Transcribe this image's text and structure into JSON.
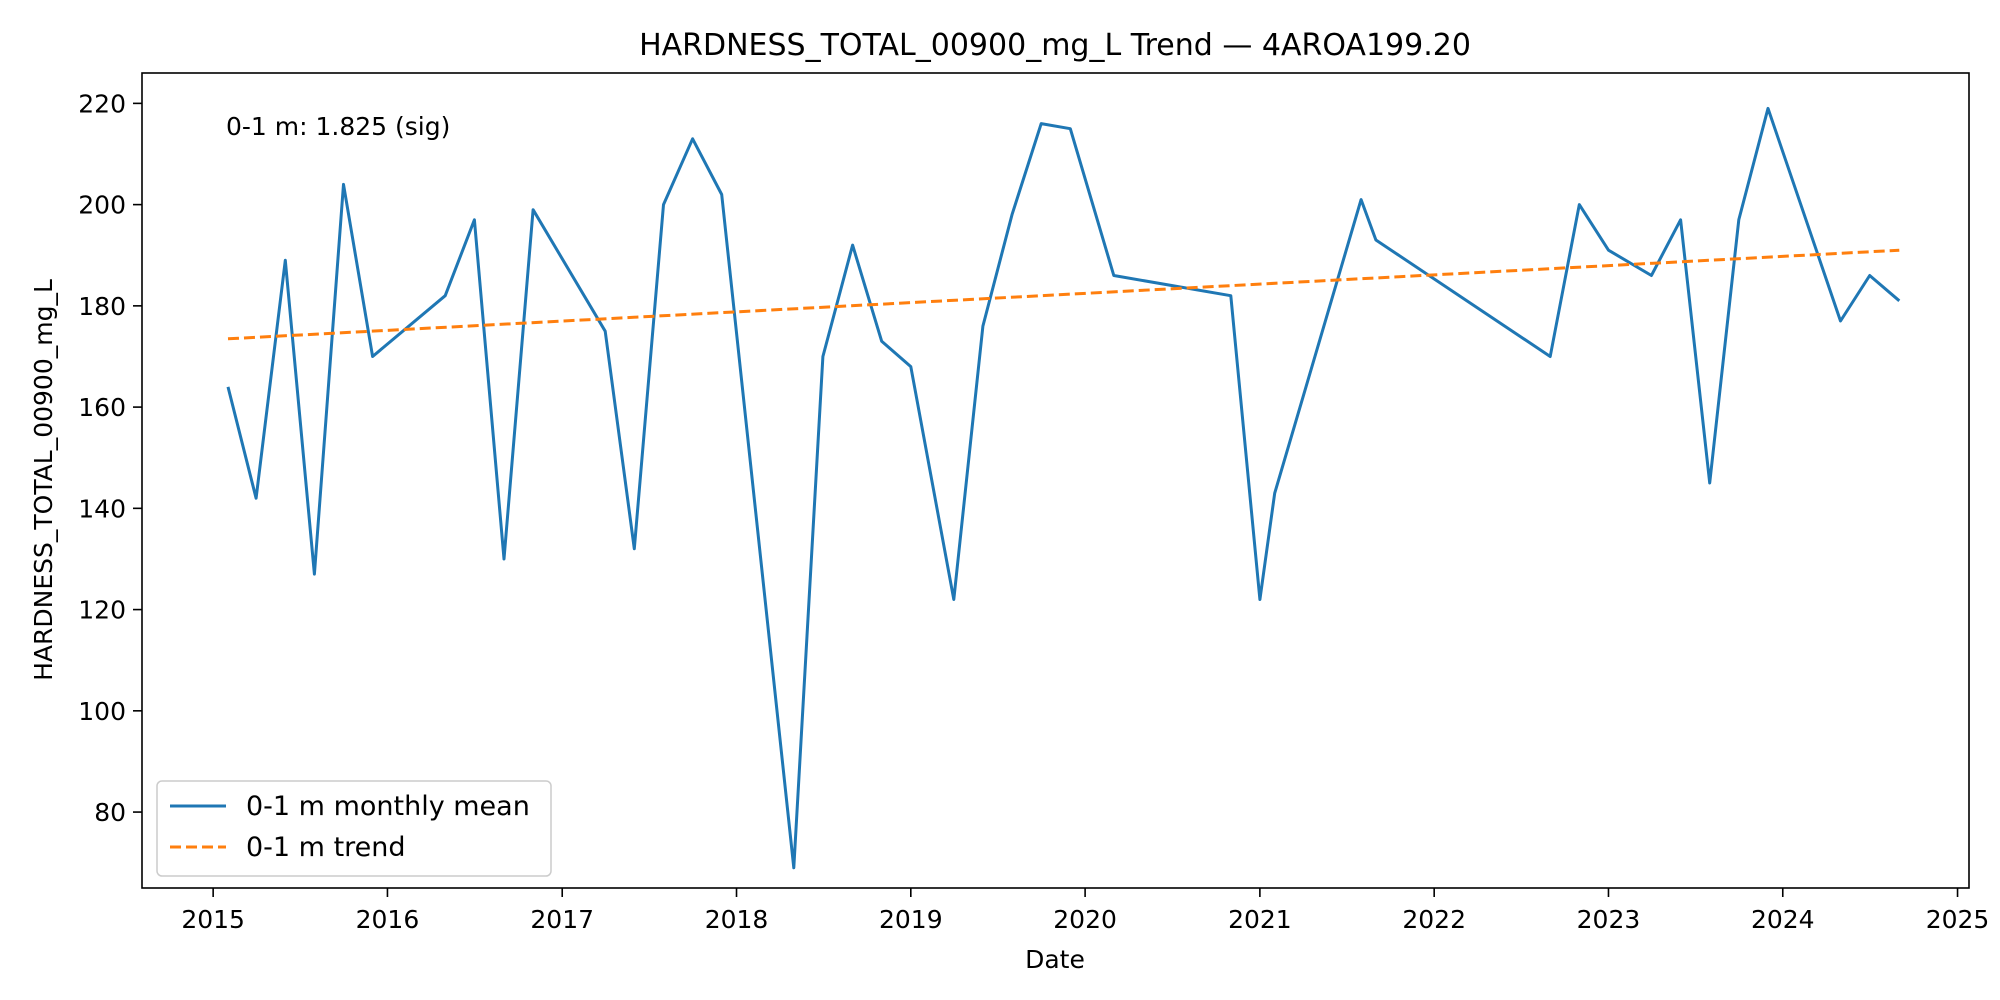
{
  "chart_data": {
    "type": "line",
    "title": "HARDNESS_TOTAL_00900_mg_L Trend — 4AROA199.20",
    "xlabel": "Date",
    "ylabel": "HARDNESS_TOTAL_00900_mg_L",
    "xlim": [
      "2014-08-05",
      "2025-01-25"
    ],
    "ylim": [
      65,
      226
    ],
    "x_ticks": [
      "2015",
      "2016",
      "2017",
      "2018",
      "2019",
      "2020",
      "2021",
      "2022",
      "2023",
      "2024",
      "2025"
    ],
    "y_ticks": [
      80,
      100,
      120,
      140,
      160,
      180,
      200,
      220
    ],
    "grid": false,
    "legend_position": "lower-left",
    "annotation": "0-1 m: 1.825 (sig)",
    "series": [
      {
        "name": "0-1 m monthly mean",
        "color": "#1f77b4",
        "style": "solid",
        "points": [
          [
            "2015-02-01",
            164
          ],
          [
            "2015-04-01",
            142
          ],
          [
            "2015-06-01",
            189
          ],
          [
            "2015-08-01",
            127
          ],
          [
            "2015-10-01",
            204
          ],
          [
            "2015-12-01",
            170
          ],
          [
            "2016-05-01",
            182
          ],
          [
            "2016-07-01",
            197
          ],
          [
            "2016-09-01",
            130
          ],
          [
            "2016-11-01",
            199
          ],
          [
            "2017-04-01",
            175
          ],
          [
            "2017-06-01",
            132
          ],
          [
            "2017-08-01",
            200
          ],
          [
            "2017-10-01",
            213
          ],
          [
            "2017-12-01",
            202
          ],
          [
            "2018-05-01",
            69
          ],
          [
            "2018-07-01",
            170
          ],
          [
            "2018-09-01",
            192
          ],
          [
            "2018-11-01",
            173
          ],
          [
            "2019-01-01",
            168
          ],
          [
            "2019-04-01",
            122
          ],
          [
            "2019-06-01",
            176
          ],
          [
            "2019-08-01",
            198
          ],
          [
            "2019-10-01",
            216
          ],
          [
            "2019-12-01",
            215
          ],
          [
            "2020-03-01",
            186
          ],
          [
            "2020-11-01",
            182
          ],
          [
            "2021-01-01",
            122
          ],
          [
            "2021-02-01",
            143
          ],
          [
            "2021-08-01",
            201
          ],
          [
            "2021-09-01",
            193
          ],
          [
            "2022-09-01",
            170
          ],
          [
            "2022-11-01",
            200
          ],
          [
            "2023-01-01",
            191
          ],
          [
            "2023-04-01",
            186
          ],
          [
            "2023-06-01",
            197
          ],
          [
            "2023-08-01",
            145
          ],
          [
            "2023-10-01",
            197
          ],
          [
            "2023-12-01",
            219
          ],
          [
            "2024-05-01",
            177
          ],
          [
            "2024-07-01",
            186
          ],
          [
            "2024-09-01",
            181
          ]
        ]
      },
      {
        "name": "0-1 m trend",
        "color": "#ff7f0e",
        "style": "dashed",
        "points": [
          [
            "2015-02-01",
            173.5
          ],
          [
            "2024-09-01",
            191
          ]
        ]
      }
    ]
  }
}
